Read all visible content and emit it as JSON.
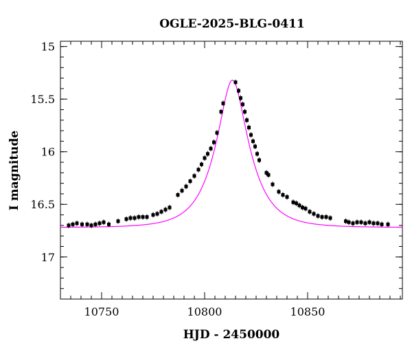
{
  "chart_data": {
    "type": "scatter",
    "title": "OGLE-2025-BLG-0411",
    "xlabel": "HJD - 2450000",
    "ylabel": "I magnitude",
    "xlim": [
      10730,
      10896
    ],
    "ylim": [
      17.4,
      14.95
    ],
    "y_inverted": true,
    "grid": false,
    "xticks": [
      10750,
      10800,
      10850
    ],
    "yticks": [
      15,
      15.5,
      16,
      16.5,
      17
    ],
    "model": {
      "name": "",
      "color": "#ff00ff",
      "t0": 10813.5,
      "peak_mag": 15.32,
      "baseline_mag": 16.72
    },
    "points_color": "#000000",
    "points": [
      [
        10734.0,
        16.7
      ],
      [
        10736.0,
        16.69
      ],
      [
        10738.0,
        16.68
      ],
      [
        10740.5,
        16.69
      ],
      [
        10743.0,
        16.69
      ],
      [
        10745.0,
        16.7
      ],
      [
        10747.0,
        16.69
      ],
      [
        10749.0,
        16.68
      ],
      [
        10751.0,
        16.67
      ],
      [
        10753.5,
        16.69
      ],
      [
        10758.0,
        16.66
      ],
      [
        10762.0,
        16.64
      ],
      [
        10764.0,
        16.63
      ],
      [
        10766.0,
        16.63
      ],
      [
        10768.0,
        16.62
      ],
      [
        10770.0,
        16.62
      ],
      [
        10772.0,
        16.62
      ],
      [
        10775.0,
        16.6
      ],
      [
        10777.0,
        16.59
      ],
      [
        10779.0,
        16.57
      ],
      [
        10781.0,
        16.55
      ],
      [
        10783.0,
        16.53
      ],
      [
        10787.0,
        16.41
      ],
      [
        10789.0,
        16.37
      ],
      [
        10791.0,
        16.33
      ],
      [
        10793.0,
        16.28
      ],
      [
        10795.0,
        16.23
      ],
      [
        10797.0,
        16.17
      ],
      [
        10798.5,
        16.12
      ],
      [
        10800.0,
        16.06
      ],
      [
        10801.5,
        16.02
      ],
      [
        10803.0,
        15.97
      ],
      [
        10804.5,
        15.91
      ],
      [
        10806.0,
        15.82
      ],
      [
        10808.0,
        15.62
      ],
      [
        10809.0,
        15.54
      ],
      [
        10815.0,
        15.34
      ],
      [
        10816.5,
        15.42
      ],
      [
        10817.5,
        15.49
      ],
      [
        10818.5,
        15.55
      ],
      [
        10819.5,
        15.62
      ],
      [
        10820.5,
        15.7
      ],
      [
        10821.5,
        15.77
      ],
      [
        10822.5,
        15.84
      ],
      [
        10823.5,
        15.9
      ],
      [
        10824.5,
        15.95
      ],
      [
        10825.5,
        16.02
      ],
      [
        10826.5,
        16.08
      ],
      [
        10830.0,
        16.2
      ],
      [
        10831.0,
        16.22
      ],
      [
        10833.0,
        16.31
      ],
      [
        10836.0,
        16.38
      ],
      [
        10838.0,
        16.41
      ],
      [
        10840.0,
        16.43
      ],
      [
        10843.0,
        16.48
      ],
      [
        10844.5,
        16.49
      ],
      [
        10846.0,
        16.51
      ],
      [
        10847.5,
        16.53
      ],
      [
        10849.0,
        16.54
      ],
      [
        10851.0,
        16.57
      ],
      [
        10853.0,
        16.59
      ],
      [
        10855.0,
        16.61
      ],
      [
        10857.0,
        16.62
      ],
      [
        10859.0,
        16.62
      ],
      [
        10861.0,
        16.63
      ],
      [
        10868.5,
        16.66
      ],
      [
        10870.0,
        16.67
      ],
      [
        10872.0,
        16.68
      ],
      [
        10874.0,
        16.67
      ],
      [
        10876.0,
        16.67
      ],
      [
        10878.0,
        16.68
      ],
      [
        10880.0,
        16.67
      ],
      [
        10882.0,
        16.68
      ],
      [
        10884.0,
        16.68
      ],
      [
        10886.0,
        16.69
      ],
      [
        10889.0,
        16.69
      ]
    ]
  }
}
